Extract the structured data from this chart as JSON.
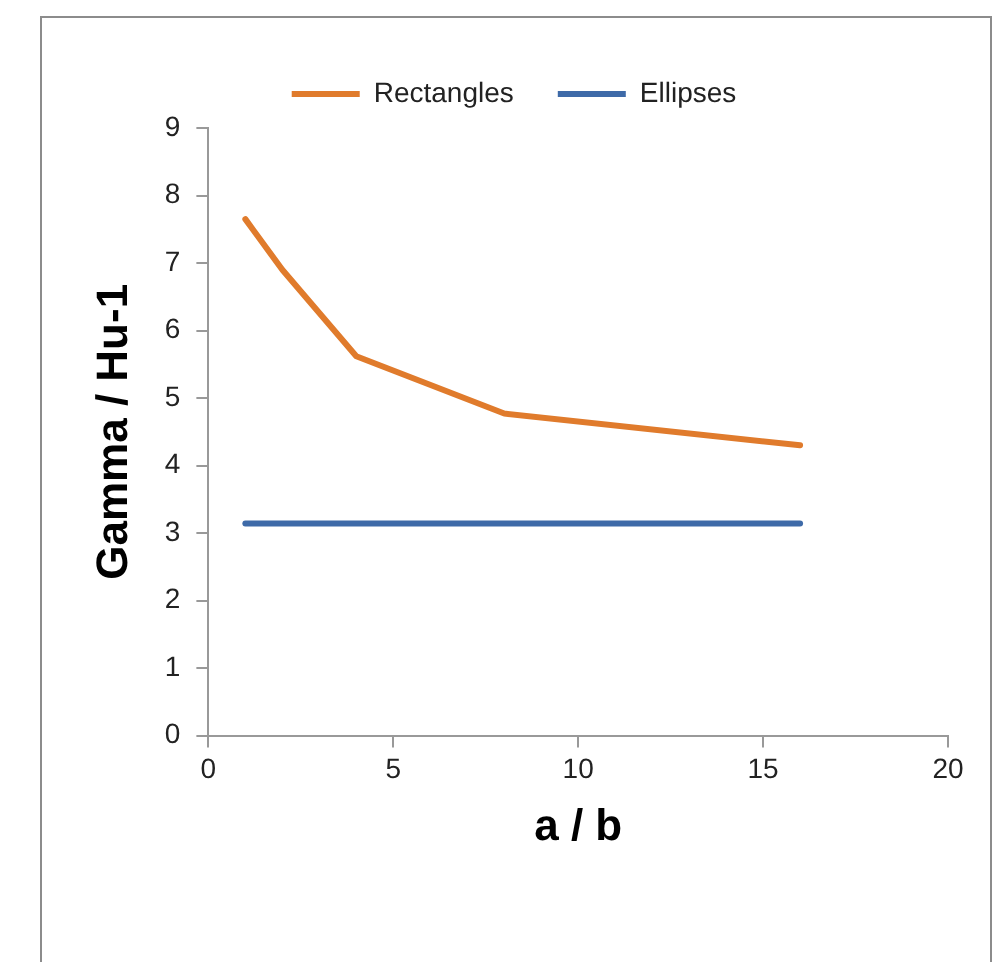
{
  "chart_data": {
    "type": "line",
    "xlabel": "a / b",
    "ylabel": "Gamma / Hu-1",
    "x": [
      1,
      2,
      4,
      8,
      16
    ],
    "series": [
      {
        "name": "Rectangles",
        "color": "#e07b2c",
        "values": [
          7.65,
          6.9,
          5.62,
          4.77,
          4.3
        ]
      },
      {
        "name": "Ellipses",
        "color": "#3e6aa8",
        "values": [
          3.14,
          3.14,
          3.14,
          3.14,
          3.14
        ]
      }
    ],
    "xlim": [
      0,
      20
    ],
    "xticks": [
      0,
      5,
      10,
      15,
      20
    ],
    "ylim": [
      0,
      9
    ],
    "yticks": [
      0,
      1,
      2,
      3,
      4,
      5,
      6,
      7,
      8,
      9
    ],
    "grid": false,
    "legend": "top",
    "marker": "none",
    "line_style": "solid"
  }
}
